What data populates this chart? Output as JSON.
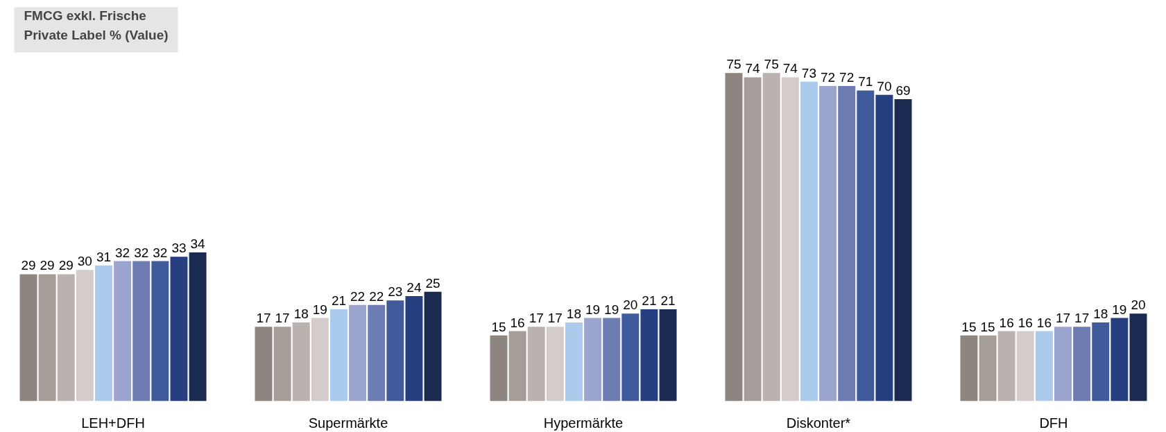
{
  "chart_data": {
    "type": "bar",
    "title": "FMCG exkl. Frische\nPrivate Label % (Value)",
    "categories": [
      "LEH+DFH",
      "Supermärkte",
      "Hypermärkte",
      "Diskonter*",
      "DFH"
    ],
    "series": [
      {
        "color": "#8c8580",
        "values": [
          29,
          17,
          15,
          75,
          15
        ]
      },
      {
        "color": "#a59d98",
        "values": [
          29,
          17,
          16,
          74,
          15
        ]
      },
      {
        "color": "#bab2ae",
        "values": [
          29,
          18,
          17,
          75,
          16
        ]
      },
      {
        "color": "#d4cccb",
        "values": [
          30,
          19,
          17,
          74,
          16
        ]
      },
      {
        "color": "#aacbeb",
        "values": [
          31,
          21,
          18,
          73,
          16
        ]
      },
      {
        "color": "#9ca5cf",
        "values": [
          32,
          22,
          19,
          72,
          17
        ]
      },
      {
        "color": "#6d7db3",
        "values": [
          32,
          22,
          19,
          72,
          17
        ]
      },
      {
        "color": "#3f5b9c",
        "values": [
          32,
          23,
          20,
          71,
          18
        ]
      },
      {
        "color": "#263f80",
        "values": [
          33,
          24,
          21,
          70,
          19
        ]
      },
      {
        "color": "#1b2a50",
        "values": [
          34,
          25,
          21,
          69,
          20
        ]
      }
    ],
    "data_labels": true,
    "grid": false
  }
}
